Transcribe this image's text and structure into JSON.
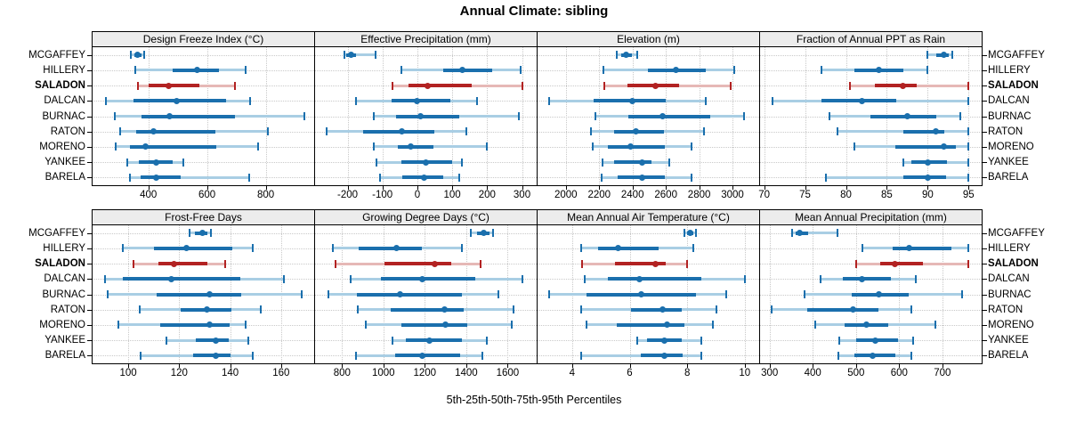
{
  "title": "Annual Climate: sibling",
  "xlabel": "5th-25th-50th-75th-95th Percentiles",
  "stations": [
    "MCGAFFEY",
    "HILLERY",
    "SALADON",
    "DALCAN",
    "BURNAC",
    "RATON",
    "MORENO",
    "YANKEE",
    "BARELA"
  ],
  "highlight_station": "SALADON",
  "colors": {
    "blue_dark": "#1a6fad",
    "blue_light": "#a9cee4",
    "red_dark": "#b22222",
    "red_light": "#e6b8b6",
    "strip_bg": "#ececec",
    "grid": "#c9c9c9",
    "border": "#000000"
  },
  "chart_data": [
    {
      "type": "percentile-dotplot",
      "title": "Design Freeze Index (°C)",
      "row": 0,
      "col": 0,
      "xlim": [
        210,
        965
      ],
      "ticks": [
        400,
        600,
        800
      ],
      "percentiles": [
        "5th",
        "25th",
        "50th",
        "75th",
        "95th"
      ],
      "values": [
        [
          340,
          352,
          364,
          376,
          386
        ],
        [
          355,
          483,
          567,
          640,
          730
        ],
        [
          365,
          400,
          470,
          575,
          695
        ],
        [
          255,
          350,
          497,
          665,
          748
        ],
        [
          285,
          376,
          473,
          694,
          930
        ],
        [
          303,
          358,
          418,
          628,
          806
        ],
        [
          290,
          336,
          390,
          630,
          775
        ],
        [
          327,
          367,
          427,
          482,
          518
        ],
        [
          336,
          373,
          427,
          509,
          745
        ]
      ]
    },
    {
      "type": "percentile-dotplot",
      "title": "Effective Precipitation (mm)",
      "row": 0,
      "col": 1,
      "xlim": [
        -293,
        342
      ],
      "ticks": [
        -200,
        -100,
        0,
        100,
        200,
        300
      ],
      "percentiles": [
        "5th",
        "25th",
        "50th",
        "75th",
        "95th"
      ],
      "values": [
        [
          -210,
          -203,
          -190,
          -175,
          -120
        ],
        [
          -45,
          75,
          130,
          215,
          295
        ],
        [
          -70,
          -25,
          30,
          155,
          300
        ],
        [
          -175,
          -75,
          0,
          95,
          170
        ],
        [
          -125,
          -60,
          8,
          120,
          290
        ],
        [
          -260,
          -155,
          -45,
          50,
          140
        ],
        [
          -126,
          -55,
          -19,
          47,
          198
        ],
        [
          -117,
          -47,
          25,
          100,
          128
        ],
        [
          -108,
          -44,
          20,
          75,
          121
        ]
      ]
    },
    {
      "type": "percentile-dotplot",
      "title": "Elevation (m)",
      "row": 0,
      "col": 2,
      "xlim": [
        1830,
        3160
      ],
      "ticks": [
        2000,
        2200,
        2400,
        2600,
        2800,
        3000
      ],
      "percentiles": [
        "5th",
        "25th",
        "50th",
        "75th",
        "95th"
      ],
      "values": [
        [
          2305,
          2330,
          2360,
          2398,
          2430
        ],
        [
          2226,
          2490,
          2660,
          2840,
          3008
        ],
        [
          2230,
          2370,
          2540,
          2680,
          2990
        ],
        [
          1897,
          2167,
          2398,
          2600,
          2840
        ],
        [
          2178,
          2377,
          2580,
          2865,
          3070
        ],
        [
          2150,
          2290,
          2420,
          2590,
          2830
        ],
        [
          2160,
          2250,
          2390,
          2595,
          2755
        ],
        [
          2220,
          2290,
          2455,
          2515,
          2620
        ],
        [
          2215,
          2310,
          2455,
          2595,
          2755
        ]
      ]
    },
    {
      "type": "percentile-dotplot",
      "title": "Fraction of Annual PPT as Rain",
      "row": 0,
      "col": 3,
      "xlim": [
        69.5,
        96.6
      ],
      "ticks": [
        70,
        75,
        80,
        85,
        90,
        95
      ],
      "percentiles": [
        "5th",
        "25th",
        "50th",
        "75th",
        "95th"
      ],
      "values": [
        [
          90,
          91,
          92,
          92.6,
          93
        ],
        [
          77,
          81,
          84,
          87,
          90
        ],
        [
          80.5,
          83.5,
          87,
          88.7,
          95
        ],
        [
          71,
          77,
          82,
          86.2,
          95
        ],
        [
          78,
          83,
          87.5,
          91,
          94
        ],
        [
          79,
          87,
          91,
          92,
          95
        ],
        [
          81,
          86,
          92,
          93.4,
          95
        ],
        [
          87,
          88,
          90,
          92.3,
          95
        ],
        [
          77.5,
          87,
          90,
          92.3,
          95
        ]
      ]
    },
    {
      "type": "percentile-dotplot",
      "title": "Frost-Free Days",
      "row": 1,
      "col": 0,
      "xlim": [
        86,
        173
      ],
      "ticks": [
        100,
        120,
        140,
        160
      ],
      "percentiles": [
        "5th",
        "25th",
        "50th",
        "75th",
        "95th"
      ],
      "values": [
        [
          124,
          126,
          129,
          131,
          132.5
        ],
        [
          98,
          110,
          123,
          141,
          149
        ],
        [
          102,
          112,
          118,
          131,
          138
        ],
        [
          91,
          98,
          117,
          144,
          161
        ],
        [
          92,
          111,
          132,
          144.5,
          168
        ],
        [
          104.5,
          120.5,
          131,
          140.5,
          152
        ],
        [
          96,
          112.5,
          132,
          140,
          146
        ],
        [
          115,
          126.5,
          134.5,
          139.5,
          147
        ],
        [
          105,
          125.5,
          134.5,
          140,
          149
        ]
      ]
    },
    {
      "type": "percentile-dotplot",
      "title": "Growing Degree Days (°C)",
      "row": 1,
      "col": 1,
      "xlim": [
        670,
        1740
      ],
      "ticks": [
        800,
        1000,
        1200,
        1400,
        1600
      ],
      "percentiles": [
        "5th",
        "25th",
        "50th",
        "75th",
        "95th"
      ],
      "values": [
        [
          1420,
          1450,
          1483,
          1514,
          1531
        ],
        [
          757,
          879,
          1064,
          1186,
          1379
        ],
        [
          769,
          1007,
          1246,
          1329,
          1471
        ],
        [
          840,
          986,
          1186,
          1443,
          1671
        ],
        [
          736,
          871,
          1079,
          1380,
          1557
        ],
        [
          874,
          1036,
          1293,
          1386,
          1629
        ],
        [
          914,
          1086,
          1300,
          1407,
          1621
        ],
        [
          1043,
          1107,
          1221,
          1379,
          1497
        ],
        [
          869,
          1057,
          1189,
          1371,
          1479
        ]
      ]
    },
    {
      "type": "percentile-dotplot",
      "title": "Mean Annual Air Temperature (°C)",
      "row": 1,
      "col": 2,
      "xlim": [
        2.8,
        10.5
      ],
      "ticks": [
        4,
        6,
        8,
        10
      ],
      "percentiles": [
        "5th",
        "25th",
        "50th",
        "75th",
        "95th"
      ],
      "values": [
        [
          7.9,
          8.0,
          8.1,
          8.2,
          8.3
        ],
        [
          4.3,
          4.9,
          5.6,
          7.0,
          8.2
        ],
        [
          4.35,
          5.5,
          6.9,
          7.25,
          8.0
        ],
        [
          4.45,
          5.25,
          6.35,
          8.5,
          10.0
        ],
        [
          3.2,
          4.5,
          6.4,
          8.3,
          9.35
        ],
        [
          4.3,
          6.05,
          7.15,
          7.8,
          9.0
        ],
        [
          4.5,
          5.55,
          7.3,
          7.9,
          8.9
        ],
        [
          6.25,
          6.6,
          7.2,
          7.8,
          8.5
        ],
        [
          4.3,
          6.4,
          7.2,
          7.85,
          8.5
        ]
      ]
    },
    {
      "type": "percentile-dotplot",
      "title": "Mean Annual Precipitation (mm)",
      "row": 1,
      "col": 3,
      "xlim": [
        278,
        791
      ],
      "ticks": [
        300,
        400,
        500,
        600,
        700
      ],
      "percentiles": [
        "5th",
        "25th",
        "50th",
        "75th",
        "95th"
      ],
      "values": [
        [
          353,
          360,
          370,
          390,
          457
        ],
        [
          514,
          584,
          622,
          720,
          759
        ],
        [
          500,
          555,
          590,
          655,
          760
        ],
        [
          417,
          470,
          514,
          580,
          638
        ],
        [
          380,
          490,
          552,
          622,
          745
        ],
        [
          305,
          388,
          493,
          553,
          628
        ],
        [
          405,
          474,
          524,
          574,
          683
        ],
        [
          462,
          500,
          545,
          598,
          632
        ],
        [
          460,
          497,
          538,
          591,
          628
        ]
      ]
    }
  ]
}
